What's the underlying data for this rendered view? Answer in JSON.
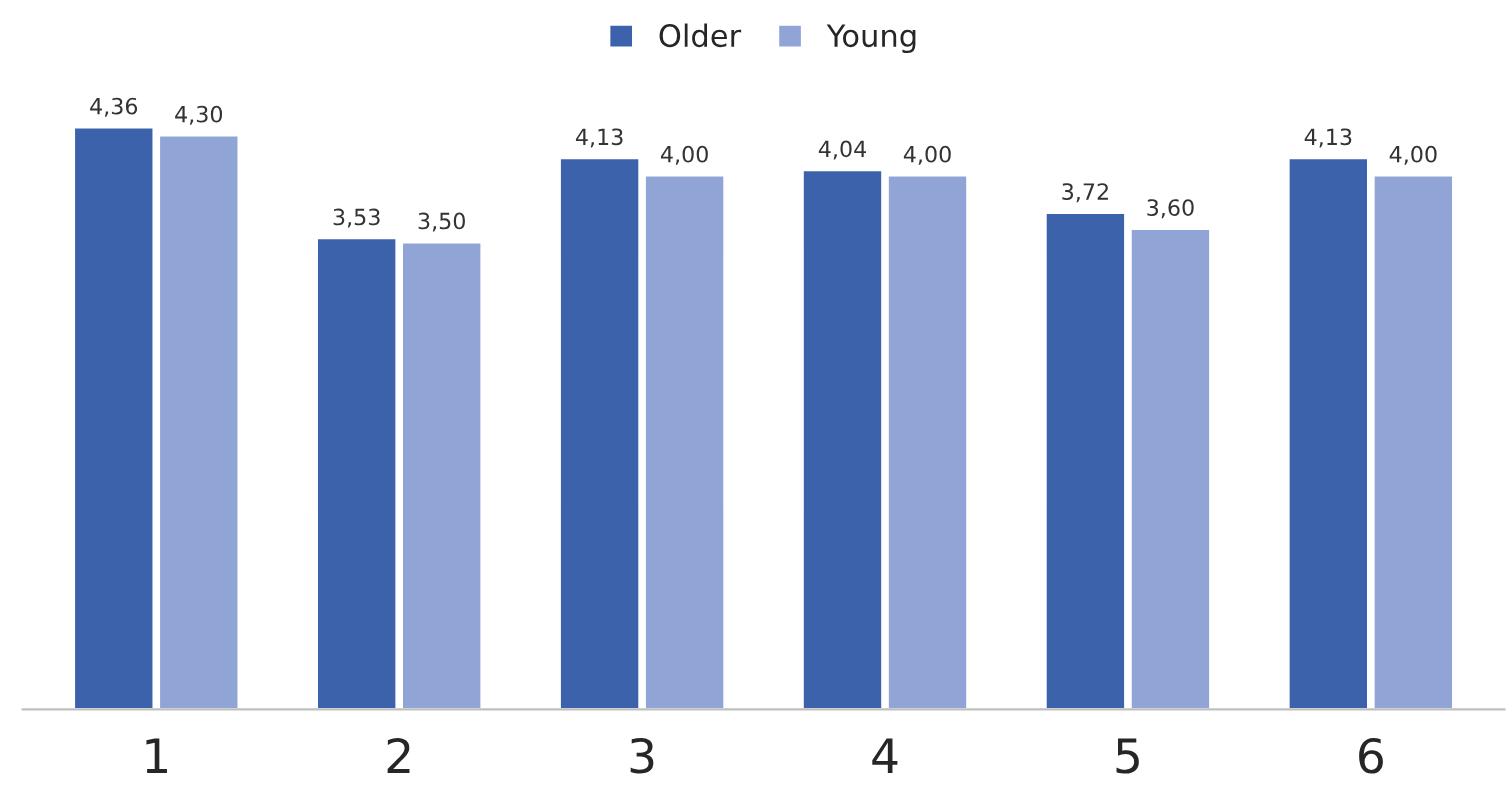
{
  "chart_data": {
    "type": "bar",
    "categories": [
      "1",
      "2",
      "3",
      "4",
      "5",
      "6"
    ],
    "series": [
      {
        "name": "Older",
        "color": "#3c62ac",
        "values": [
          4.36,
          3.53,
          4.13,
          4.04,
          3.72,
          4.13
        ],
        "value_labels": [
          "4,36",
          "3,53",
          "4,13",
          "4,04",
          "3,72",
          "4,13"
        ]
      },
      {
        "name": "Young",
        "color": "#90a5d5",
        "values": [
          4.3,
          3.5,
          4.0,
          4.0,
          3.6,
          4.0
        ],
        "value_labels": [
          "4,30",
          "3,50",
          "4,00",
          "4,00",
          "3,60",
          "4,00"
        ]
      }
    ],
    "legend": "top"
  }
}
